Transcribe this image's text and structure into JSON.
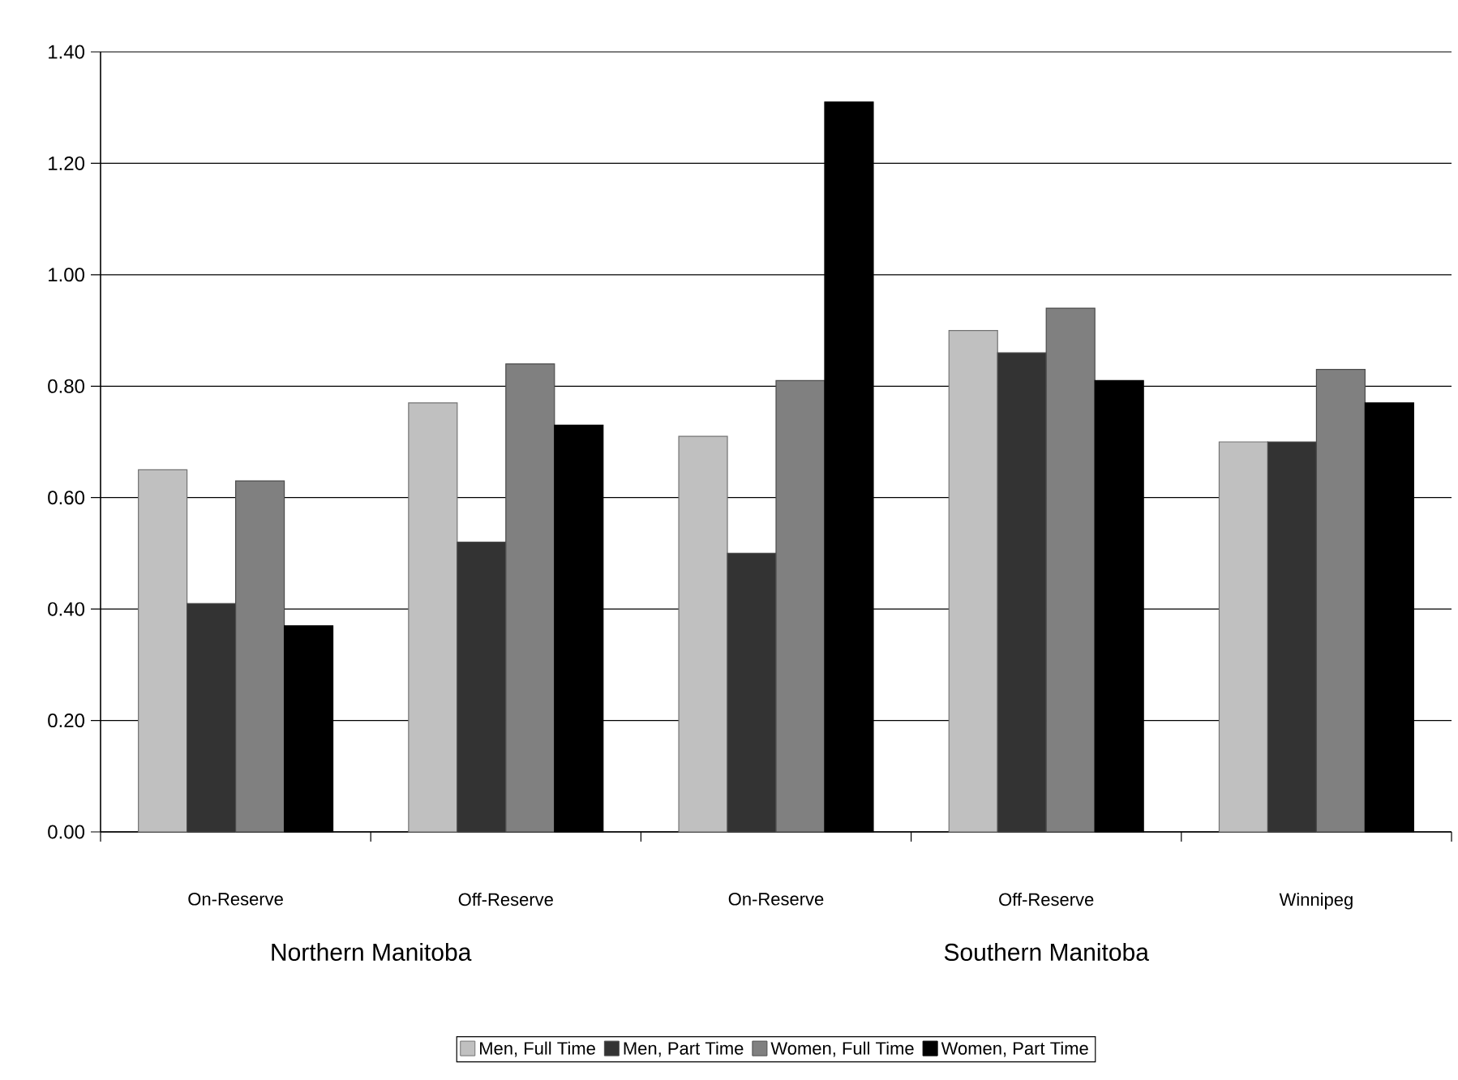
{
  "chart_data": {
    "type": "bar",
    "categories": [
      "On-Reserve",
      "Off-Reserve",
      "On-Reserve",
      "Off-Reserve",
      "Winnipeg"
    ],
    "series": [
      {
        "name": "Men, Full Time",
        "color": "#c0c0c0",
        "values": [
          0.65,
          0.77,
          0.71,
          0.9,
          0.7
        ]
      },
      {
        "name": "Men, Part Time",
        "color": "#333333",
        "values": [
          0.41,
          0.52,
          0.5,
          0.86,
          0.7
        ]
      },
      {
        "name": "Women, Full Time",
        "color": "#808080",
        "values": [
          0.63,
          0.84,
          0.81,
          0.94,
          0.83
        ]
      },
      {
        "name": "Women, Part Time",
        "color": "#000000",
        "values": [
          0.37,
          0.73,
          1.31,
          0.81,
          0.77
        ]
      }
    ],
    "ylim": [
      0,
      1.4
    ],
    "yticks": [
      {
        "value": 0,
        "label": "0.00"
      },
      {
        "value": 0.2,
        "label": "0.20"
      },
      {
        "value": 0.4,
        "label": "0.40"
      },
      {
        "value": 0.6,
        "label": "0.60"
      },
      {
        "value": 0.8,
        "label": "0.80"
      },
      {
        "value": 1.0,
        "label": "1.00"
      },
      {
        "value": 1.2,
        "label": "1.20"
      },
      {
        "value": 1.4,
        "label": "1.40"
      }
    ],
    "grid": "y",
    "legend": "bottom",
    "annotations": [
      "Northern Manitoba",
      "Southern Manitoba"
    ]
  }
}
